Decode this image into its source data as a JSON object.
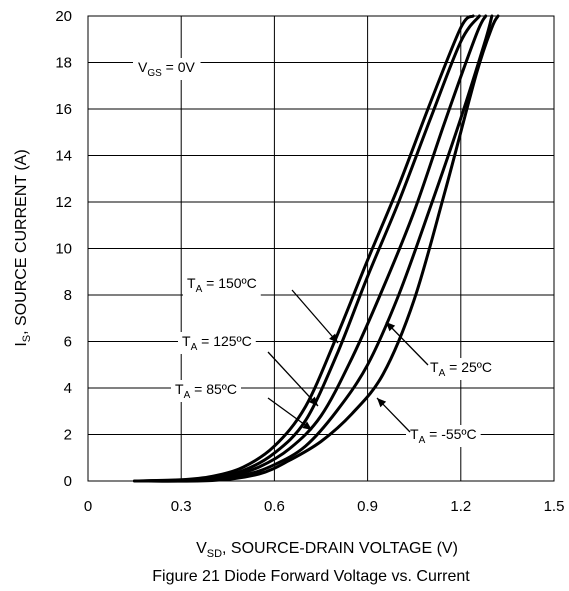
{
  "chart_data": {
    "type": "line",
    "xlabel_main": "V",
    "xlabel_sub": "SD",
    "xlabel_rest": ", SOURCE-DRAIN VOLTAGE (V)",
    "ylabel_main": "I",
    "ylabel_sub": "S",
    "ylabel_rest": ", SOURCE CURRENT (A)",
    "caption": "Figure 21 Diode Forward Voltage vs. Current",
    "xlim": [
      0,
      1.5
    ],
    "ylim": [
      0,
      20
    ],
    "x_ticks": [
      "0",
      "0.3",
      "0.6",
      "0.9",
      "1.2",
      "1.5"
    ],
    "x_tick_values": [
      0,
      0.3,
      0.6,
      0.9,
      1.2,
      1.5
    ],
    "y_ticks": [
      "0",
      "2",
      "4",
      "6",
      "8",
      "10",
      "12",
      "14",
      "16",
      "18",
      "20"
    ],
    "y_tick_values": [
      0,
      2,
      4,
      6,
      8,
      10,
      12,
      14,
      16,
      18,
      20
    ],
    "grid": true,
    "condition": {
      "main": "V",
      "sub": "GS",
      "rest": " = 0V"
    },
    "series": [
      {
        "name_main": "T",
        "name_sub": "A",
        "name_rest": " =  150ºC",
        "x": [
          0.15,
          0.3,
          0.4,
          0.5,
          0.6,
          0.7,
          0.8,
          0.9,
          1.0,
          1.1,
          1.2,
          1.24
        ],
        "y": [
          0,
          0.05,
          0.2,
          0.6,
          1.5,
          3.2,
          6.2,
          9.5,
          12.7,
          16.2,
          19.5,
          20
        ]
      },
      {
        "name_main": "T",
        "name_sub": "A",
        "name_rest": " = 125ºC",
        "x": [
          0.15,
          0.3,
          0.4,
          0.5,
          0.6,
          0.7,
          0.8,
          0.9,
          1.0,
          1.1,
          1.2,
          1.26
        ],
        "y": [
          0,
          0.04,
          0.15,
          0.45,
          1.2,
          2.6,
          5.4,
          8.8,
          12.0,
          15.5,
          18.9,
          20
        ]
      },
      {
        "name_main": "T",
        "name_sub": "A",
        "name_rest": " = 85ºC",
        "x": [
          0.15,
          0.3,
          0.45,
          0.55,
          0.65,
          0.75,
          0.85,
          0.95,
          1.05,
          1.15,
          1.25,
          1.28
        ],
        "y": [
          0,
          0.03,
          0.2,
          0.6,
          1.4,
          2.8,
          5.3,
          8.3,
          11.6,
          15.5,
          19.2,
          20
        ]
      },
      {
        "name_main": "T",
        "name_sub": "A",
        "name_rest": " =  25ºC",
        "x": [
          0.15,
          0.35,
          0.5,
          0.6,
          0.7,
          0.8,
          0.9,
          1.0,
          1.1,
          1.2,
          1.28,
          1.3
        ],
        "y": [
          0,
          0.02,
          0.25,
          0.7,
          1.5,
          3.0,
          5.0,
          8.0,
          11.7,
          15.6,
          19.0,
          20
        ]
      },
      {
        "name_main": "T",
        "name_sub": "A",
        "name_rest": " = -55ºC",
        "x": [
          0.15,
          0.4,
          0.55,
          0.65,
          0.75,
          0.85,
          0.95,
          1.05,
          1.15,
          1.25,
          1.3,
          1.32
        ],
        "y": [
          0,
          0.02,
          0.3,
          0.9,
          1.7,
          2.9,
          4.6,
          7.8,
          12.5,
          17.5,
          19.5,
          20
        ]
      }
    ]
  }
}
